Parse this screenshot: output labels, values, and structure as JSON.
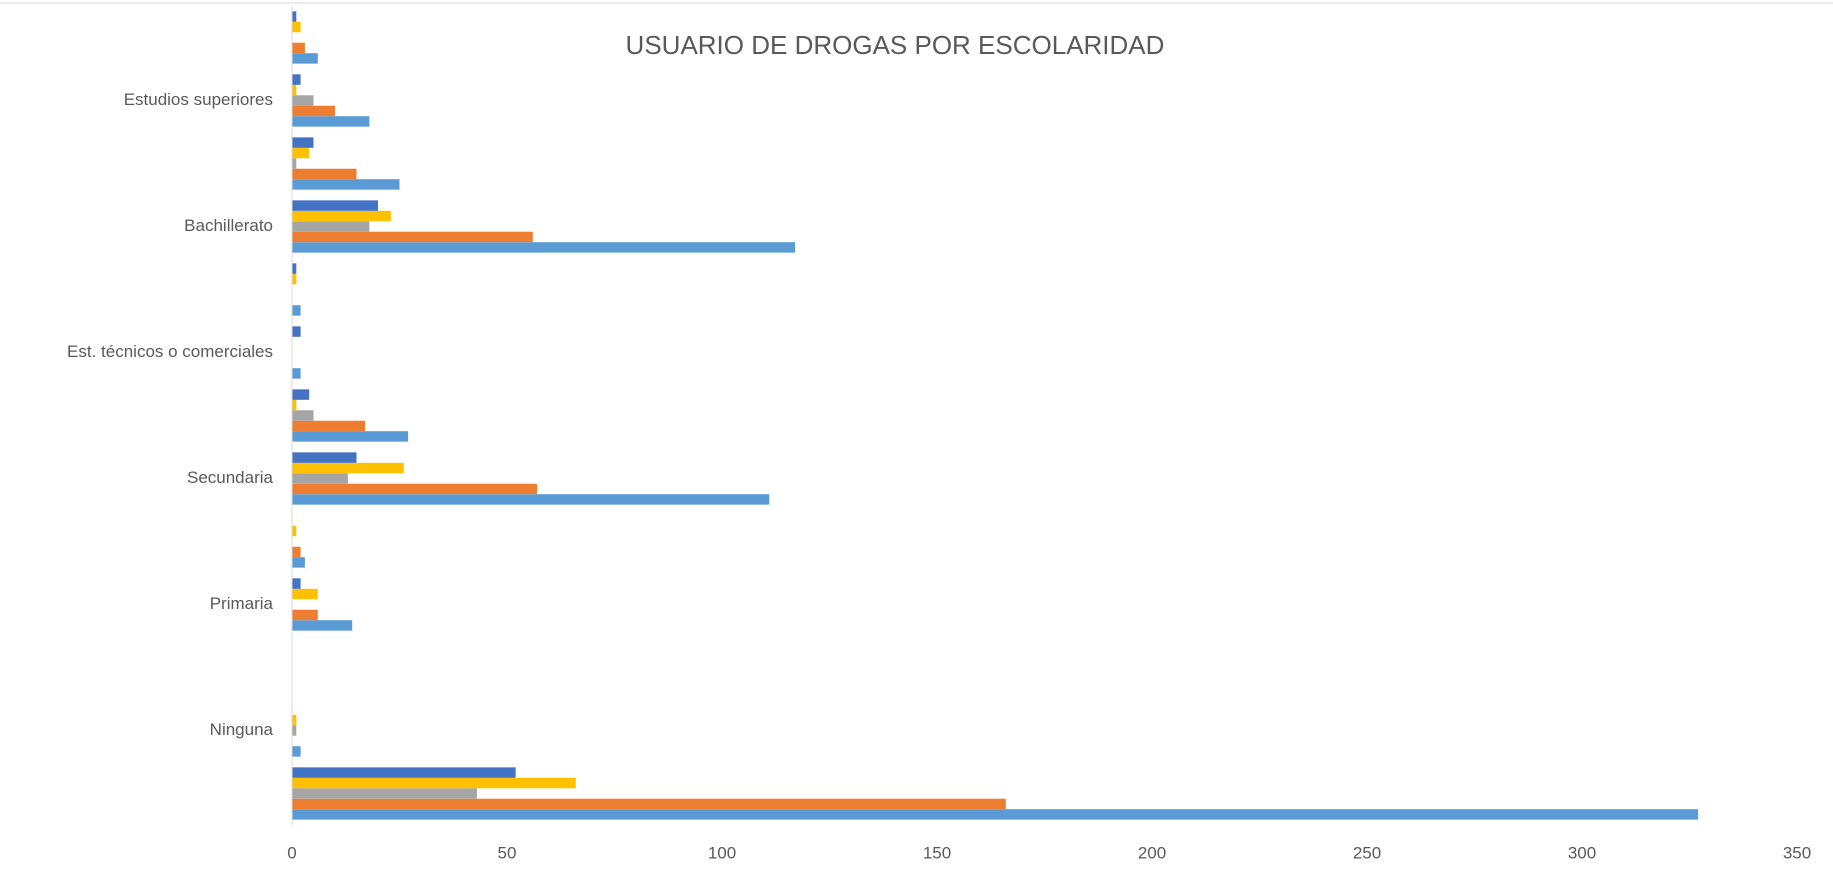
{
  "chart_data": {
    "type": "bar",
    "orientation": "horizontal",
    "title": "USUARIO DE DROGAS POR ESCOLARIDAD",
    "categories": [
      null,
      "Ninguna",
      null,
      "Primaria",
      null,
      "Secundaria",
      null,
      "Est. técnicos o comerciales",
      null,
      "Bachillerato",
      null,
      "Estudios superiores",
      null
    ],
    "series": [
      {
        "color": "#5b9bd5",
        "values": [
          327,
          2,
          0,
          14,
          3,
          111,
          27,
          2,
          2,
          117,
          25,
          18,
          6
        ]
      },
      {
        "color": "#ed7d31",
        "values": [
          166,
          0,
          0,
          6,
          2,
          57,
          17,
          0,
          0,
          56,
          15,
          10,
          3
        ]
      },
      {
        "color": "#a5a5a5",
        "values": [
          43,
          1,
          0,
          0,
          0,
          13,
          5,
          0,
          0,
          18,
          1,
          5,
          0
        ]
      },
      {
        "color": "#ffc000",
        "values": [
          66,
          1,
          0,
          6,
          1,
          26,
          1,
          0,
          1,
          23,
          4,
          1,
          2
        ]
      },
      {
        "color": "#4472c4",
        "values": [
          52,
          0,
          0,
          2,
          0,
          15,
          4,
          2,
          1,
          20,
          5,
          2,
          1
        ]
      }
    ],
    "xlim": [
      0,
      350
    ],
    "xticks": [
      0,
      50,
      100,
      150,
      200,
      250,
      300,
      350
    ],
    "grid": false
  }
}
